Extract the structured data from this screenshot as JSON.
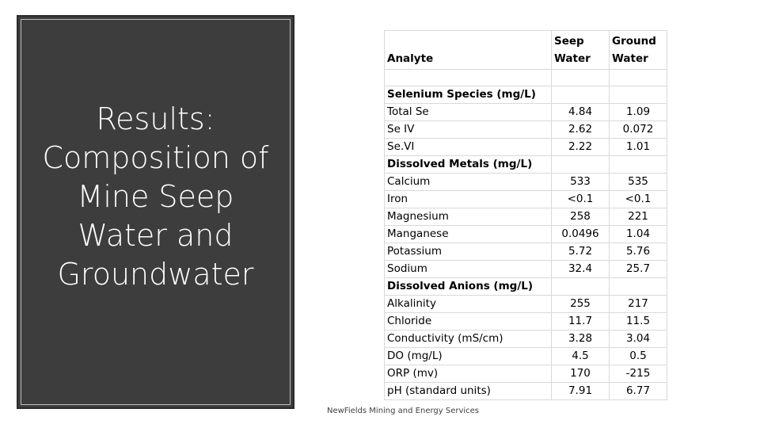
{
  "title": "Results: Composition of Mine Seep Water and Groundwater",
  "table": {
    "headers": [
      "Analyte",
      "Seep Water",
      "Ground Water"
    ],
    "rows": [
      {
        "type": "spacer",
        "cells": [
          "",
          "",
          ""
        ]
      },
      {
        "type": "section",
        "cells": [
          "Selenium Species (mg/L)",
          "",
          ""
        ]
      },
      {
        "type": "data",
        "cells": [
          "Total Se",
          "4.84",
          "1.09"
        ]
      },
      {
        "type": "data",
        "cells": [
          "Se IV",
          "2.62",
          "0.072"
        ]
      },
      {
        "type": "data",
        "cells": [
          "Se.VI",
          "2.22",
          "1.01"
        ]
      },
      {
        "type": "section",
        "cells": [
          "Dissolved Metals (mg/L)",
          "",
          ""
        ]
      },
      {
        "type": "data",
        "cells": [
          "Calcium",
          "533",
          "535"
        ]
      },
      {
        "type": "data",
        "cells": [
          "Iron",
          "<0.1",
          "<0.1"
        ]
      },
      {
        "type": "data",
        "cells": [
          "Magnesium",
          "258",
          "221"
        ]
      },
      {
        "type": "data",
        "cells": [
          "Manganese",
          "0.0496",
          "1.04"
        ]
      },
      {
        "type": "data",
        "cells": [
          "Potassium",
          "5.72",
          "5.76"
        ]
      },
      {
        "type": "data",
        "cells": [
          "Sodium",
          "32.4",
          "25.7"
        ]
      },
      {
        "type": "section",
        "cells": [
          "Dissolved Anions (mg/L)",
          "",
          ""
        ]
      },
      {
        "type": "data",
        "cells": [
          "Alkalinity",
          "255",
          "217"
        ]
      },
      {
        "type": "data",
        "cells": [
          "Chloride",
          "11.7",
          "11.5"
        ]
      },
      {
        "type": "data",
        "cells": [
          "Conductivity (mS/cm)",
          "3.28",
          "3.04"
        ]
      },
      {
        "type": "data",
        "cells": [
          "DO (mg/L)",
          "4.5",
          "0.5"
        ]
      },
      {
        "type": "data",
        "cells": [
          "ORP (mv)",
          "170",
          "-215"
        ]
      },
      {
        "type": "data",
        "cells": [
          "pH (standard units)",
          "7.91",
          "6.77"
        ]
      }
    ]
  },
  "footer": "NewFields Mining and Energy Services"
}
